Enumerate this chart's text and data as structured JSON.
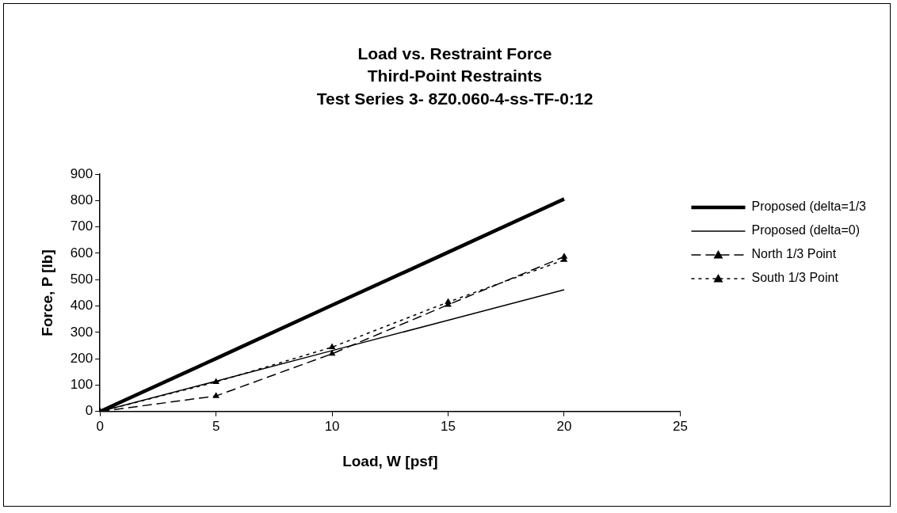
{
  "chart_data": {
    "type": "line",
    "title": "Load vs. Restraint Force\nThird-Point Restraints\nTest Series 3- 8Z0.060-4-ss-TF-0:12",
    "xlabel": "Load, W [psf]",
    "ylabel": "Force, P [lb]",
    "x": [
      0,
      5,
      10,
      15,
      20
    ],
    "series": [
      {
        "name": "Proposed (delta=1/3",
        "color": "#000000",
        "values": [
          0,
          201,
          403,
          604,
          806
        ],
        "line_style": "solid",
        "marker": "none"
      },
      {
        "name": "Proposed (delta=0)",
        "color": "#000000",
        "values": [
          0,
          115,
          231,
          346,
          462
        ],
        "line_style": "solid",
        "marker": "none"
      },
      {
        "name": "North 1/3 Point",
        "color": "#000000",
        "values": [
          0,
          59,
          219,
          405,
          587
        ],
        "line_style": "dashed",
        "marker": "triangle"
      },
      {
        "name": "South 1/3 Point",
        "color": "#000000",
        "values": [
          0,
          112,
          244,
          415,
          575
        ],
        "line_style": "dotted",
        "marker": "triangle"
      }
    ],
    "xlim": [
      0,
      25
    ],
    "xticks": [
      0,
      5,
      10,
      15,
      20,
      25
    ],
    "ylim": [
      0,
      900
    ],
    "yticks": [
      0,
      100,
      200,
      300,
      400,
      500,
      600,
      700,
      800,
      900
    ],
    "grid": false,
    "legend": "right"
  }
}
